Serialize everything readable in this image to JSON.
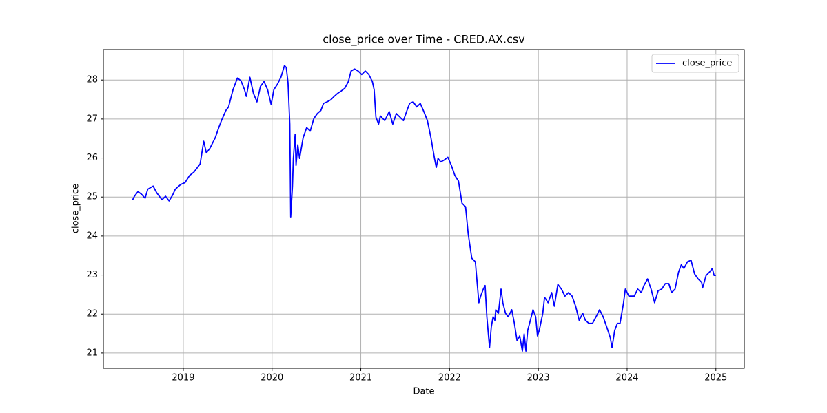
{
  "chart_data": {
    "type": "line",
    "title": "close_price over Time - CRED.AX.csv",
    "xlabel": "Date",
    "ylabel": "close_price",
    "x": [
      2018.43,
      2018.45,
      2018.49,
      2018.53,
      2018.57,
      2018.6,
      2018.66,
      2018.7,
      2018.76,
      2018.8,
      2018.84,
      2018.88,
      2018.91,
      2018.97,
      2019.02,
      2019.07,
      2019.12,
      2019.19,
      2019.23,
      2019.26,
      2019.3,
      2019.36,
      2019.4,
      2019.43,
      2019.48,
      2019.51,
      2019.56,
      2019.61,
      2019.65,
      2019.69,
      2019.71,
      2019.75,
      2019.79,
      2019.83,
      2019.87,
      2019.91,
      2019.95,
      2019.99,
      2020.02,
      2020.06,
      2020.1,
      2020.14,
      2020.16,
      2020.18,
      2020.2,
      2020.21,
      2020.23,
      2020.24,
      2020.26,
      2020.27,
      2020.29,
      2020.31,
      2020.35,
      2020.39,
      2020.43,
      2020.47,
      2020.51,
      2020.55,
      2020.58,
      2020.62,
      2020.66,
      2020.7,
      2020.74,
      2020.78,
      2020.82,
      2020.86,
      2020.89,
      2020.93,
      2020.97,
      2021.01,
      2021.05,
      2021.09,
      2021.13,
      2021.15,
      2021.17,
      2021.2,
      2021.22,
      2021.27,
      2021.32,
      2021.36,
      2021.4,
      2021.44,
      2021.48,
      2021.52,
      2021.55,
      2021.59,
      2021.63,
      2021.67,
      2021.71,
      2021.75,
      2021.79,
      2021.83,
      2021.85,
      2021.87,
      2021.9,
      2021.94,
      2021.98,
      2022.02,
      2022.06,
      2022.1,
      2022.14,
      2022.18,
      2022.21,
      2022.25,
      2022.29,
      2022.33,
      2022.35,
      2022.38,
      2022.4,
      2022.42,
      2022.45,
      2022.47,
      2022.49,
      2022.51,
      2022.52,
      2022.55,
      2022.58,
      2022.6,
      2022.63,
      2022.66,
      2022.7,
      2022.73,
      2022.76,
      2022.79,
      2022.82,
      2022.84,
      2022.86,
      2022.88,
      2022.91,
      2022.94,
      2022.97,
      2022.99,
      2023.01,
      2023.05,
      2023.07,
      2023.11,
      2023.15,
      2023.18,
      2023.22,
      2023.26,
      2023.3,
      2023.34,
      2023.38,
      2023.42,
      2023.46,
      2023.5,
      2023.53,
      2023.57,
      2023.61,
      2023.65,
      2023.69,
      2023.73,
      2023.77,
      2023.81,
      2023.83,
      2023.86,
      2023.89,
      2023.92,
      2023.96,
      2023.98,
      2024.02,
      2024.05,
      2024.08,
      2024.12,
      2024.16,
      2024.19,
      2024.23,
      2024.27,
      2024.31,
      2024.35,
      2024.39,
      2024.43,
      2024.47,
      2024.5,
      2024.54,
      2024.58,
      2024.61,
      2024.64,
      2024.68,
      2024.72,
      2024.76,
      2024.8,
      2024.84,
      2024.85,
      2024.89,
      2024.93,
      2024.96,
      2024.98,
      2025.0
    ],
    "series": [
      {
        "name": "close_price",
        "color": "#0000ff",
        "values": [
          24.93,
          25.02,
          25.14,
          25.07,
          24.97,
          25.2,
          25.28,
          25.11,
          24.93,
          25.02,
          24.9,
          25.05,
          25.2,
          25.32,
          25.37,
          25.55,
          25.64,
          25.85,
          26.43,
          26.13,
          26.25,
          26.52,
          26.78,
          26.96,
          27.22,
          27.31,
          27.75,
          28.05,
          27.98,
          27.75,
          27.58,
          28.07,
          27.66,
          27.44,
          27.84,
          27.96,
          27.75,
          27.37,
          27.75,
          27.89,
          28.07,
          28.37,
          28.32,
          27.93,
          26.87,
          24.49,
          25.28,
          25.99,
          26.61,
          25.81,
          26.34,
          25.99,
          26.52,
          26.78,
          26.69,
          27.01,
          27.14,
          27.22,
          27.4,
          27.44,
          27.49,
          27.58,
          27.66,
          27.72,
          27.79,
          27.96,
          28.23,
          28.28,
          28.23,
          28.14,
          28.23,
          28.14,
          27.96,
          27.75,
          27.05,
          26.87,
          27.08,
          26.96,
          27.19,
          26.87,
          27.14,
          27.05,
          26.96,
          27.22,
          27.4,
          27.44,
          27.31,
          27.4,
          27.19,
          26.96,
          26.52,
          25.99,
          25.76,
          25.99,
          25.9,
          25.95,
          26.02,
          25.81,
          25.55,
          25.41,
          24.84,
          24.75,
          24.05,
          23.43,
          23.34,
          22.29,
          22.46,
          22.64,
          22.73,
          21.93,
          21.14,
          21.67,
          21.93,
          21.84,
          22.11,
          22.02,
          22.64,
          22.29,
          22.02,
          21.93,
          22.11,
          21.76,
          21.32,
          21.44,
          21.05,
          21.49,
          21.05,
          21.58,
          21.84,
          22.11,
          21.93,
          21.44,
          21.58,
          22.02,
          22.43,
          22.29,
          22.55,
          22.2,
          22.76,
          22.64,
          22.46,
          22.55,
          22.46,
          22.2,
          21.84,
          22.02,
          21.84,
          21.76,
          21.76,
          21.93,
          22.11,
          21.93,
          21.67,
          21.4,
          21.14,
          21.58,
          21.76,
          21.76,
          22.29,
          22.64,
          22.46,
          22.46,
          22.46,
          22.64,
          22.55,
          22.73,
          22.9,
          22.64,
          22.29,
          22.6,
          22.64,
          22.78,
          22.78,
          22.55,
          22.64,
          23.08,
          23.26,
          23.17,
          23.34,
          23.38,
          23.03,
          22.9,
          22.81,
          22.67,
          22.99,
          23.08,
          23.17,
          22.99,
          22.99
        ]
      }
    ],
    "xlim": [
      2018.1,
      2025.32
    ],
    "xticks": [
      2019,
      2020,
      2021,
      2022,
      2023,
      2024,
      2025
    ],
    "ylim": [
      20.61,
      28.78
    ],
    "yticks": [
      21,
      22,
      23,
      24,
      25,
      26,
      27,
      28
    ],
    "grid": true,
    "legend": "upper right"
  }
}
